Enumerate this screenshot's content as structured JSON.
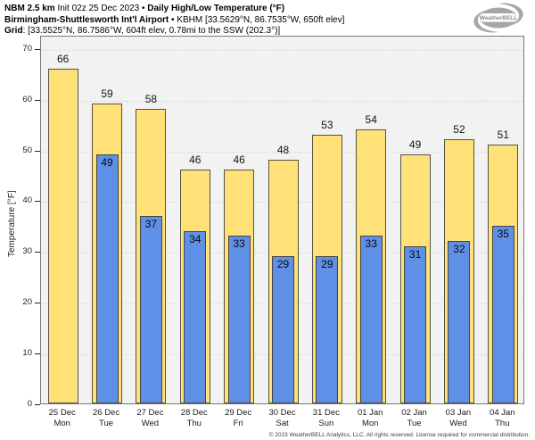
{
  "header": {
    "model": "NBM 2.5 km",
    "init": " Init 02z 25 Dec 2023 • ",
    "product": "Daily High/Low Temperature (°F)",
    "station": "Birmingham-Shuttlesworth Int'l Airport",
    "station_info": " • KBHM [33.5629°N, 86.7535°W, 650ft elev]",
    "grid_label": "Grid",
    "grid_info": ": [33.5525°N, 86.7586°W, 604ft elev, 0.78mi to the SSW (202.3°)]"
  },
  "logo": {
    "brand": "WeatherBELL"
  },
  "chart_data": {
    "type": "bar",
    "title": "NBM 2.5 km Init 02z 25 Dec 2023 • Daily High/Low Temperature (°F)",
    "subtitle": "Birmingham-Shuttlesworth Int'l Airport • KBHM [33.5629°N, 86.7535°W, 650ft elev]",
    "ylabel": "Temperature [°F]",
    "ylim": [
      0,
      72.6
    ],
    "yticks": [
      0,
      10,
      20,
      30,
      40,
      50,
      60,
      70
    ],
    "grid": "horizontal-dashed",
    "legend_position": "none (values labeled on bars)",
    "categories": [
      {
        "date": "25 Dec",
        "day": "Mon"
      },
      {
        "date": "26 Dec",
        "day": "Tue"
      },
      {
        "date": "27 Dec",
        "day": "Wed"
      },
      {
        "date": "28 Dec",
        "day": "Thu"
      },
      {
        "date": "29 Dec",
        "day": "Fri"
      },
      {
        "date": "30 Dec",
        "day": "Sat"
      },
      {
        "date": "31 Dec",
        "day": "Sun"
      },
      {
        "date": "01 Jan",
        "day": "Mon"
      },
      {
        "date": "02 Jan",
        "day": "Tue"
      },
      {
        "date": "03 Jan",
        "day": "Wed"
      },
      {
        "date": "04 Jan",
        "day": "Thu"
      }
    ],
    "series": [
      {
        "name": "Daily High",
        "color": "#ffe178",
        "values": [
          66,
          59,
          58,
          46,
          46,
          48,
          53,
          54,
          49,
          52,
          51
        ]
      },
      {
        "name": "Daily Low",
        "color": "#5e90e8",
        "values": [
          null,
          49,
          37,
          34,
          33,
          29,
          29,
          33,
          31,
          32,
          35
        ]
      }
    ]
  },
  "footer": {
    "copyright": "© 2023 WeatherBELL Analytics, LLC. All rights reserved. License required for commercial distribution."
  }
}
